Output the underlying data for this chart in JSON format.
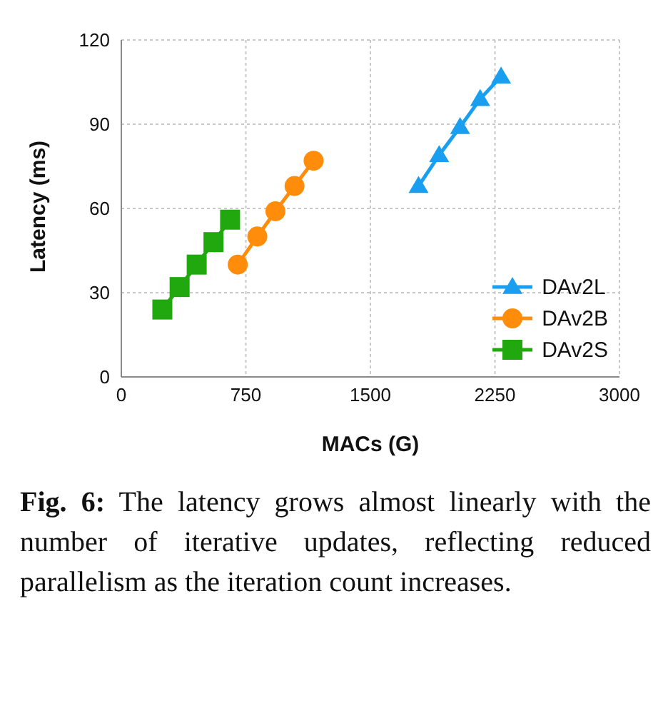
{
  "chart_data": {
    "type": "line",
    "xlabel": "MACs (G)",
    "ylabel": "Latency (ms)",
    "xlim": [
      0,
      3000
    ],
    "xticks": [
      0,
      750,
      1500,
      2250,
      3000
    ],
    "ylim": [
      0,
      120
    ],
    "yticks": [
      0,
      30,
      60,
      90,
      120
    ],
    "grid": true,
    "legend": "bottom right",
    "line_style": "solid",
    "series": [
      {
        "name": "DAv2L",
        "color": "#1a9ff0",
        "marker": "triangle",
        "x": [
          1790,
          1914,
          2040,
          2161,
          2287
        ],
        "values": [
          68,
          79,
          89,
          99,
          107
        ]
      },
      {
        "name": "DAv2B",
        "color": "#ff8c0a",
        "marker": "circle",
        "x": [
          701,
          819,
          928,
          1043,
          1158
        ],
        "values": [
          40,
          50,
          59,
          68,
          77
        ]
      },
      {
        "name": "DAv2S",
        "color": "#22a80f",
        "marker": "square",
        "x": [
          247,
          351,
          454,
          555,
          655
        ],
        "values": [
          24,
          32,
          40,
          48,
          56
        ]
      }
    ],
    "annotations": [
      "Fig. 6: The latency grows almost linearly with the number of iterative updates, reflecting reduced parallelism as the iteration count increases."
    ]
  }
}
